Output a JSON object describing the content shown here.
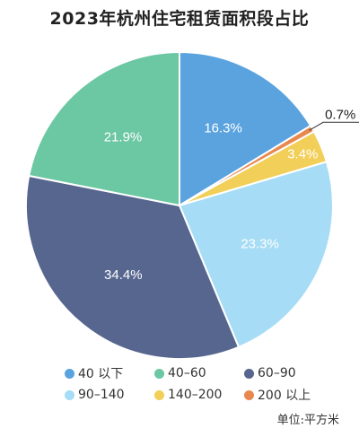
{
  "chart_data": {
    "type": "pie",
    "title": "2023年杭州住宅租赁面积段占比",
    "slices": [
      {
        "label": "40以下",
        "value": 16.3,
        "display": "16.3%",
        "color": "#5aa3df"
      },
      {
        "label": "200以上",
        "value": 0.7,
        "display": "0.7%",
        "color": "#e8884f"
      },
      {
        "label": "140-200",
        "value": 3.4,
        "display": "3.4%",
        "color": "#f1cf58"
      },
      {
        "label": "90-140",
        "value": 23.3,
        "display": "23.3%",
        "color": "#a6dcf5"
      },
      {
        "label": "60-90",
        "value": 34.4,
        "display": "34.4%",
        "color": "#56668f"
      },
      {
        "label": "40-60",
        "value": 21.9,
        "display": "21.9%",
        "color": "#6cc7a3"
      }
    ],
    "legend": [
      [
        "40 以下",
        "40–60",
        "60–90"
      ],
      [
        "90–140",
        "140–200",
        "200 以上"
      ]
    ],
    "unit_note": "单位:平方米",
    "start_angle": "12 o'clock, clockwise"
  }
}
